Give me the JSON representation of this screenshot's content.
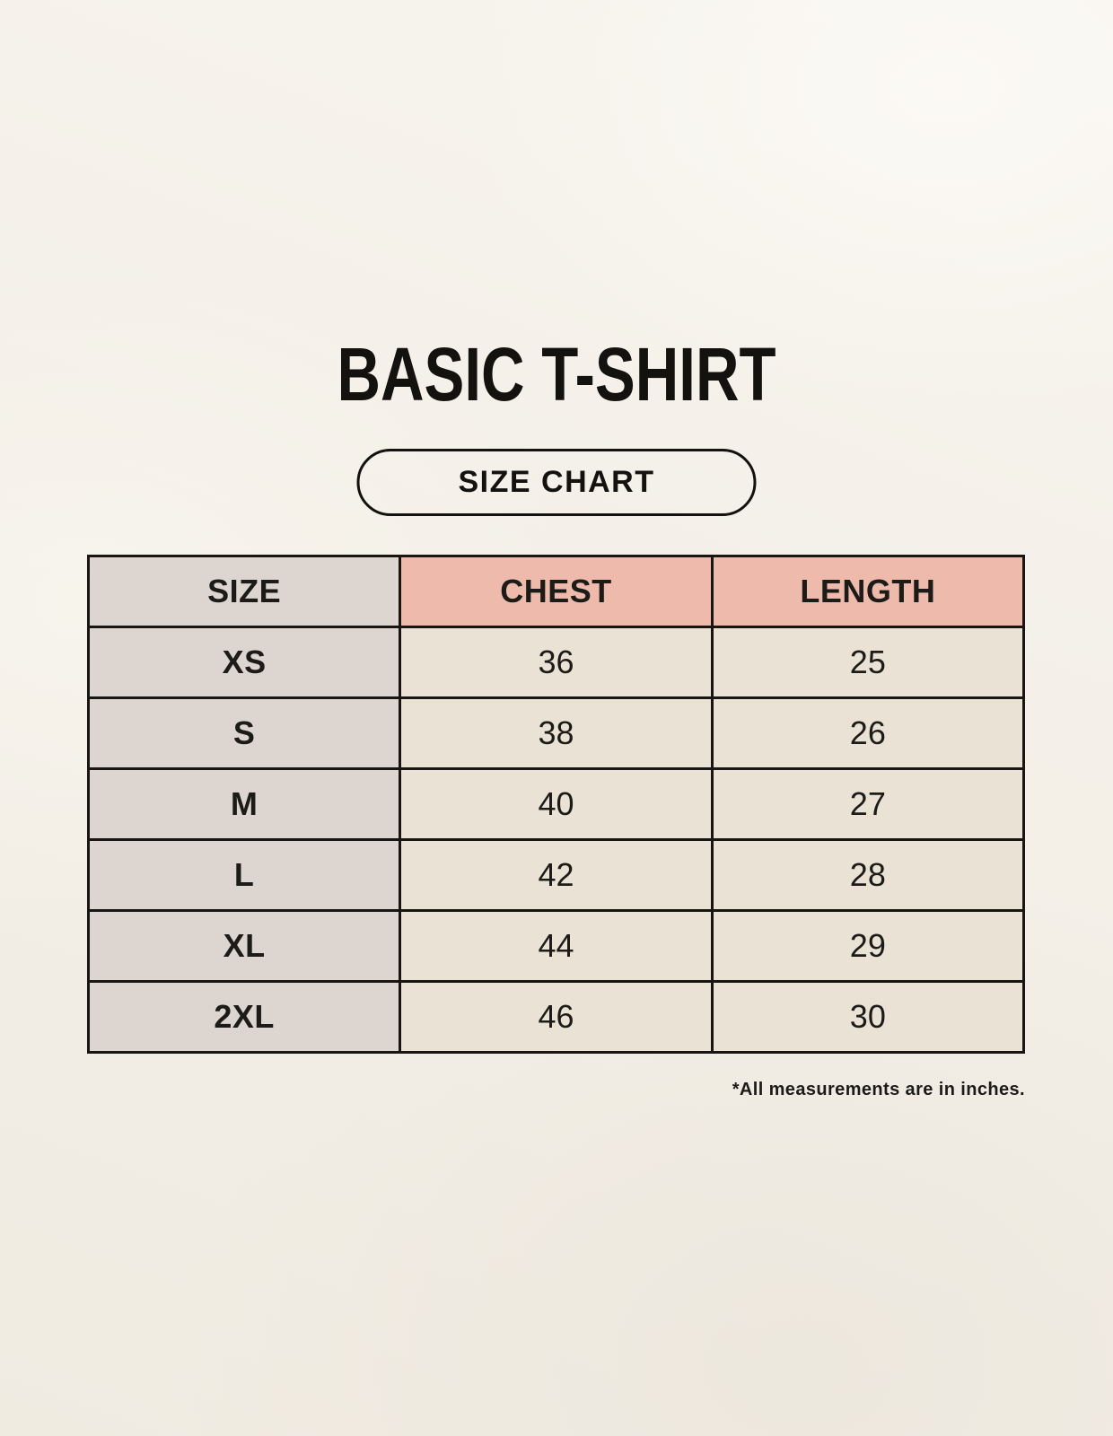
{
  "header": {
    "title": "BASIC T-SHIRT",
    "badge_label": "SIZE CHART"
  },
  "footnote": "*All measurements are in inches.",
  "colors": {
    "page_background": "#f3efe7",
    "size_column_bg": "#ddd6d0",
    "accent_header_bg": "#edbaab",
    "data_cell_bg": "#e9e2d5",
    "table_border": "#181513",
    "text": "#1d1b18"
  },
  "chart_data": {
    "type": "table",
    "title": "BASIC T-SHIRT",
    "columns": [
      "SIZE",
      "CHEST",
      "LENGTH"
    ],
    "rows": [
      [
        "XS",
        "36",
        "25"
      ],
      [
        "S",
        "38",
        "26"
      ],
      [
        "M",
        "40",
        "27"
      ],
      [
        "L",
        "42",
        "28"
      ],
      [
        "XL",
        "44",
        "29"
      ],
      [
        "2XL",
        "46",
        "30"
      ]
    ],
    "note": "*All measurements are in inches."
  }
}
